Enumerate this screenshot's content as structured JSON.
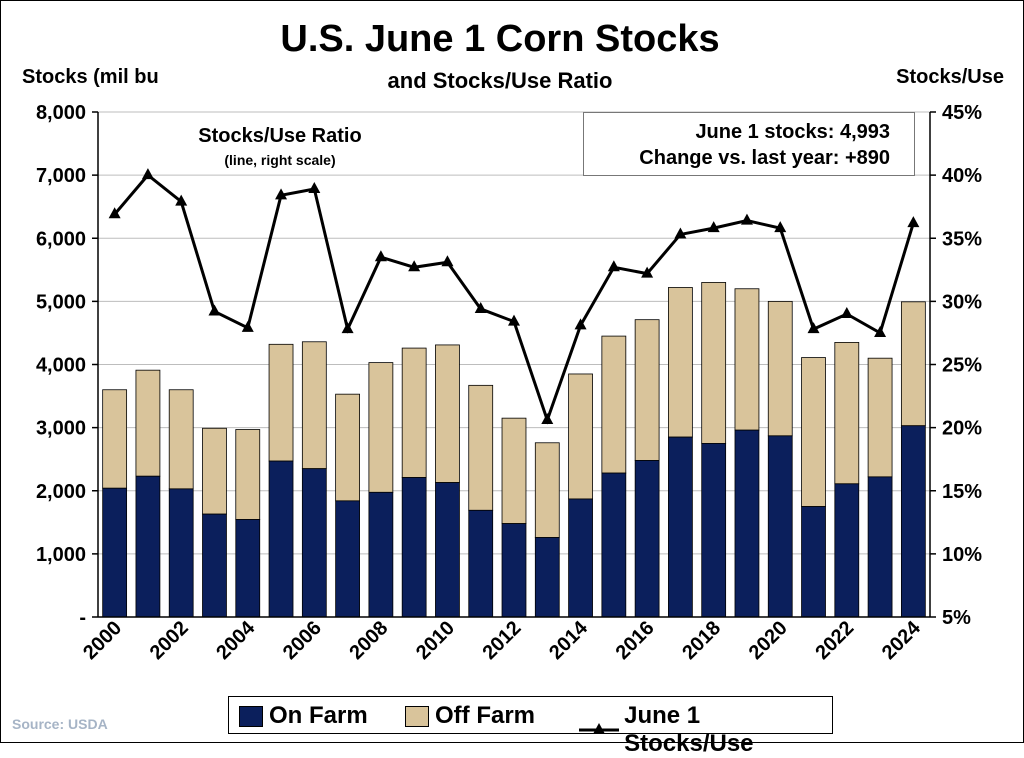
{
  "title": "U.S. June 1 Corn Stocks",
  "subtitle": "and Stocks/Use Ratio",
  "left_axis_label": "Stocks (mil bu",
  "right_axis_label": "Stocks/Use",
  "ratio_label": "Stocks/Use Ratio",
  "ratio_sublabel": "(line, right scale)",
  "info": {
    "line1": "June 1 stocks: 4,993",
    "line2": "Change vs. last year:  +890"
  },
  "source": "Source: USDA",
  "legend": {
    "on_farm": "On Farm",
    "off_farm": "Off Farm",
    "ratio": "June 1 Stocks/Use"
  },
  "colors": {
    "on_farm": "#0b1f5c",
    "off_farm": "#d9c49b",
    "line": "#000000",
    "grid": "#bdbdbd"
  },
  "chart_data": {
    "type": "bar",
    "stacked": true,
    "categories": [
      "2000",
      "2001",
      "2002",
      "2003",
      "2004",
      "2005",
      "2006",
      "2007",
      "2008",
      "2009",
      "2010",
      "2011",
      "2012",
      "2013",
      "2014",
      "2015",
      "2016",
      "2017",
      "2018",
      "2019",
      "2020",
      "2021",
      "2022",
      "2023",
      "2024"
    ],
    "x_tick_labels": [
      "2000",
      "2002",
      "2004",
      "2006",
      "2008",
      "2010",
      "2012",
      "2014",
      "2016",
      "2018",
      "2020",
      "2022",
      "2024"
    ],
    "series": [
      {
        "name": "On Farm",
        "axis": "left",
        "values": [
          2040,
          2230,
          2030,
          1630,
          1545,
          2470,
          2350,
          1840,
          1975,
          2210,
          2130,
          1690,
          1480,
          1260,
          1870,
          2280,
          2480,
          2850,
          2750,
          2960,
          2870,
          1750,
          2110,
          2220,
          3030
        ]
      },
      {
        "name": "Off Farm",
        "axis": "left",
        "values": [
          1560,
          1680,
          1570,
          1360,
          1425,
          1850,
          2010,
          1690,
          2055,
          2050,
          2180,
          1980,
          1670,
          1500,
          1980,
          2170,
          2230,
          2370,
          2550,
          2240,
          2130,
          2360,
          2240,
          1880,
          1963
        ]
      },
      {
        "name": "June 1 Stocks/Use",
        "type": "line",
        "axis": "right",
        "values": [
          36.9,
          40.0,
          37.9,
          29.2,
          27.9,
          38.4,
          38.9,
          27.8,
          33.5,
          32.7,
          33.1,
          29.4,
          28.4,
          20.6,
          28.1,
          32.7,
          32.2,
          35.3,
          35.8,
          36.4,
          35.8,
          27.8,
          29.0,
          27.5,
          36.2
        ]
      }
    ],
    "ylim_left": [
      0,
      8000
    ],
    "yticks_left": [
      "-",
      "1,000",
      "2,000",
      "3,000",
      "4,000",
      "5,000",
      "6,000",
      "7,000",
      "8,000"
    ],
    "ylim_right": [
      5,
      45
    ],
    "yticks_right": [
      "5%",
      "10%",
      "15%",
      "20%",
      "25%",
      "30%",
      "35%",
      "40%",
      "45%"
    ],
    "grid": true
  }
}
